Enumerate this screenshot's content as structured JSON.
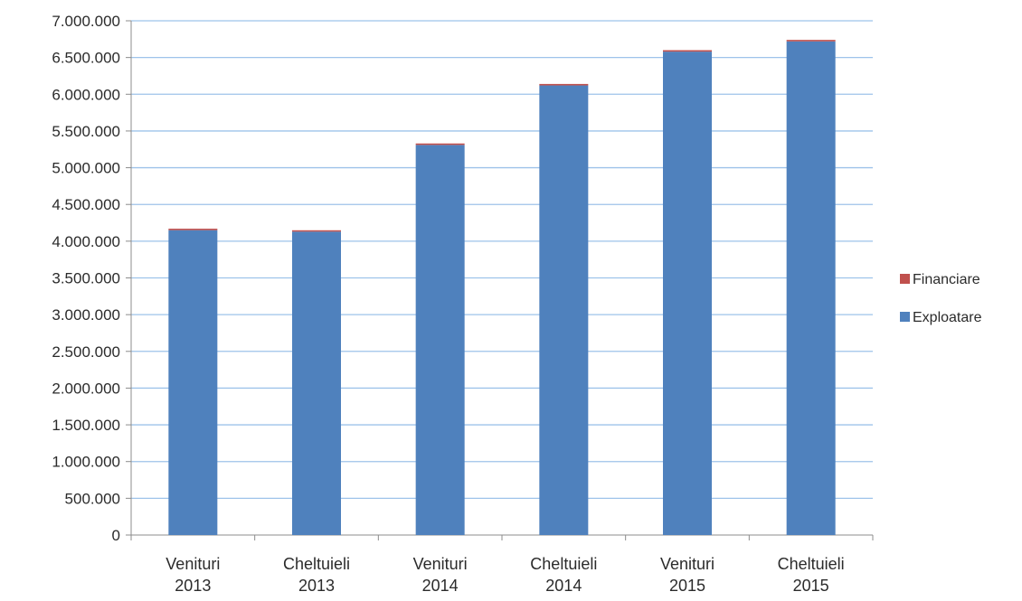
{
  "chart_data": {
    "type": "bar",
    "stacked": true,
    "categories": [
      "Venituri 2013",
      "Cheltuieli 2013",
      "Venituri 2014",
      "Cheltuieli 2014",
      "Venituri 2015",
      "Cheltuieli 2015"
    ],
    "category_lines": [
      [
        "Venituri",
        "2013"
      ],
      [
        "Cheltuieli",
        "2013"
      ],
      [
        "Venituri",
        "2014"
      ],
      [
        "Cheltuieli",
        "2014"
      ],
      [
        "Venituri",
        "2015"
      ],
      [
        "Cheltuieli",
        "2015"
      ]
    ],
    "series": [
      {
        "name": "Exploatare",
        "color": "#4f81bd",
        "values": [
          4150000,
          4130000,
          5310000,
          6120000,
          6580000,
          6720000
        ]
      },
      {
        "name": "Financiare",
        "color": "#c0504d",
        "values": [
          20000,
          10000,
          20000,
          20000,
          20000,
          20000
        ]
      }
    ],
    "ylim": [
      0,
      7000000
    ],
    "yticks": [
      0,
      500000,
      1000000,
      1500000,
      2000000,
      2500000,
      3000000,
      3500000,
      4000000,
      4500000,
      5000000,
      5500000,
      6000000,
      6500000,
      7000000
    ],
    "ytick_labels": [
      "0",
      "500.000",
      "1.000.000",
      "1.500.000",
      "2.000.000",
      "2.500.000",
      "3.000.000",
      "3.500.000",
      "4.000.000",
      "4.500.000",
      "5.000.000",
      "5.500.000",
      "6.000.000",
      "6.500.000",
      "7.000.000"
    ],
    "grid": true,
    "legend_position": "right",
    "legend_order": [
      "Financiare",
      "Exploatare"
    ],
    "title": "",
    "xlabel": "",
    "ylabel": ""
  }
}
